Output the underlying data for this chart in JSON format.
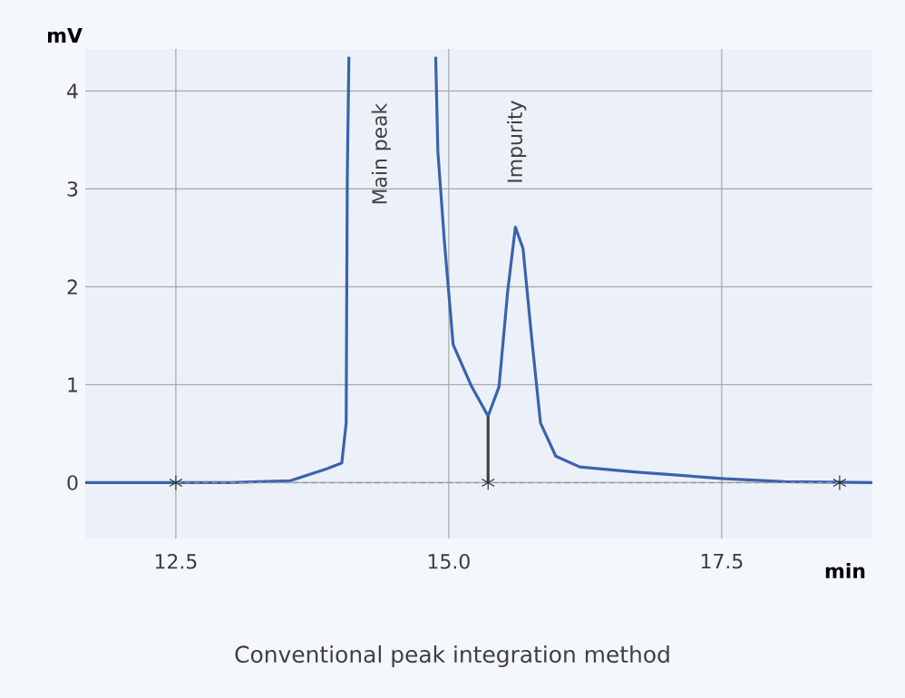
{
  "chart_data": {
    "type": "line",
    "title": "Conventional peak integration method",
    "xlabel": "min",
    "ylabel": "mV",
    "xlim": [
      11.67,
      18.88
    ],
    "ylim": [
      -0.57,
      4.43
    ],
    "xticks": [
      12.5,
      {
        "value": 15,
        "label": "15.0"
      },
      17.5
    ],
    "yticks": [
      0,
      1,
      2,
      3,
      4
    ],
    "grid": true,
    "annotations": [
      "Main peak",
      "Impurity"
    ],
    "series": [
      {
        "color": "#3a62ad",
        "line_style": "solid",
        "marker": "none",
        "x": [
          11.67,
          12.5,
          13.0,
          13.55,
          13.88,
          14.02,
          14.06,
          14.07,
          14.085,
          14.5,
          14.88,
          14.9,
          14.96,
          15.04,
          15.21,
          15.36,
          15.46,
          15.54,
          15.61,
          15.68,
          15.76,
          15.84,
          15.98,
          16.2,
          16.7,
          17.53,
          18.08,
          18.88
        ],
        "values": [
          0,
          0,
          0,
          0.02,
          0.14,
          0.2,
          0.61,
          3.1,
          4.35,
          null,
          4.35,
          3.38,
          2.46,
          1.41,
          0.98,
          0.68,
          0.98,
          1.96,
          2.61,
          2.39,
          1.47,
          0.61,
          0.27,
          0.16,
          0.11,
          0.04,
          0.01,
          0
        ]
      },
      {
        "color": "#999999",
        "line_style": "dashed",
        "marker": "cross",
        "x": [
          12.5,
          15.36,
          18.58
        ],
        "values": [
          0,
          0,
          0
        ]
      },
      {
        "color": "#444444",
        "line_style": "solid",
        "marker": "none",
        "x": [
          15.36,
          15.36
        ],
        "values": [
          0,
          0.68
        ]
      }
    ]
  }
}
